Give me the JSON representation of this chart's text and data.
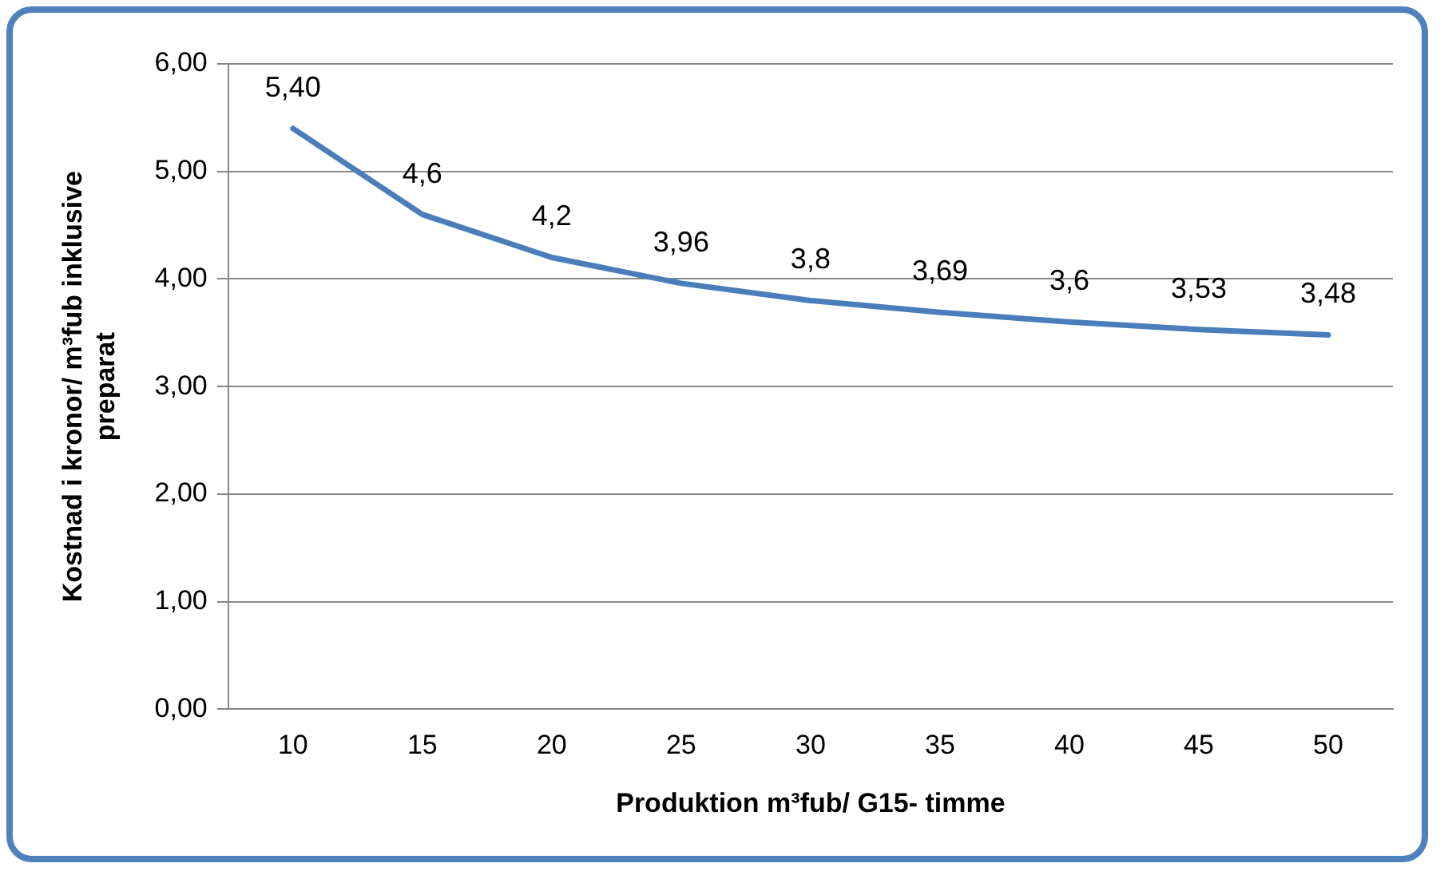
{
  "chart_data": {
    "type": "line",
    "xlabel": "Produktion m³fub/ G15- timme",
    "ylabel": "Kostnad i kronor/ m³fub inklusive\npreparat",
    "categories": [
      "10",
      "15",
      "20",
      "25",
      "30",
      "35",
      "40",
      "45",
      "50"
    ],
    "series": [
      {
        "color": "#4a7ebb",
        "values": [
          5.4,
          4.6,
          4.2,
          3.96,
          3.8,
          3.69,
          3.6,
          3.53,
          3.48
        ],
        "value_labels": [
          "5,40",
          "4,6",
          "4,2",
          "3,96",
          "3,8",
          "3,69",
          "3,6",
          "3,53",
          "3,48"
        ]
      }
    ],
    "ylim": [
      0,
      6
    ],
    "yticks": [
      {
        "value": 0,
        "label": "0,00"
      },
      {
        "value": 1,
        "label": "1,00"
      },
      {
        "value": 2,
        "label": "2,00"
      },
      {
        "value": 3,
        "label": "3,00"
      },
      {
        "value": 4,
        "label": "4,00"
      },
      {
        "value": 5,
        "label": "5,00"
      },
      {
        "value": 6,
        "label": "6,00"
      }
    ],
    "grid": "y",
    "legend": false,
    "marker": "none",
    "line_style": "solid"
  }
}
